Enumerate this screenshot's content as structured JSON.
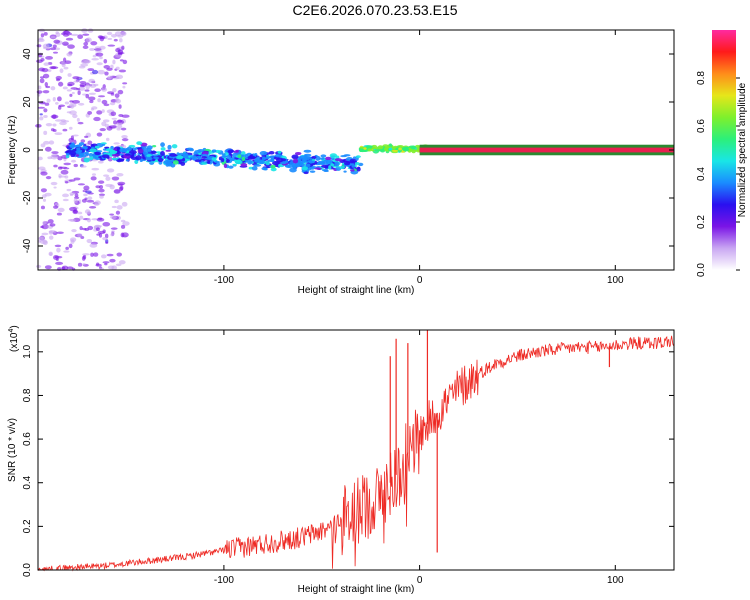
{
  "title": "C2E6.2026.070.23.53.E15",
  "colors": {
    "line": "#ee2a24",
    "axis": "#000000",
    "band_fill": "#e8204f",
    "band_edge": "#2a8a30",
    "colormap": [
      "#ffffff",
      "#c9a6f2",
      "#7a14e6",
      "#2a10f0",
      "#1a8cff",
      "#19e6e6",
      "#2cf07a",
      "#7ff02c",
      "#e6e61a",
      "#ff8c1a",
      "#ff1a1a",
      "#ff2aa0"
    ]
  },
  "chart_data": [
    {
      "type": "heatmap",
      "name": "spectrogram",
      "xlabel": "Height of straight line (km)",
      "ylabel": "Frequency (Hz)",
      "xlim": [
        -195,
        130
      ],
      "ylim": [
        -50,
        50
      ],
      "xticks": [
        -100,
        0,
        100
      ],
      "xtick_labels": [
        "-100",
        "0",
        "100"
      ],
      "yticks": [
        -40,
        -20,
        0,
        20,
        40
      ],
      "ytick_labels": [
        "-40",
        "-20",
        "0",
        "20",
        "40"
      ],
      "colorbar": {
        "label": "Normalized spectral amplitude",
        "range": [
          0,
          1
        ],
        "ticks": [
          0.0,
          0.2,
          0.4,
          0.6,
          0.8
        ],
        "tick_labels": [
          "0.0",
          "0.2",
          "0.4",
          "0.6",
          "0.8"
        ]
      },
      "features": [
        {
          "region": "scattered noise",
          "x_range": [
            -195,
            -150
          ],
          "freq_range": [
            -50,
            50
          ],
          "amplitude": 0.1
        },
        {
          "region": "main cluster",
          "x_range": [
            -180,
            -30
          ],
          "freq_range": [
            -15,
            8
          ],
          "amplitude": 0.35
        },
        {
          "region": "transition",
          "x_range": [
            -30,
            10
          ],
          "freq_range": [
            -3,
            4
          ],
          "amplitude": 0.6
        },
        {
          "region": "steady band",
          "x_range": [
            0,
            130
          ],
          "freq_range": [
            -1,
            1
          ],
          "amplitude": 0.95
        }
      ]
    },
    {
      "type": "line",
      "name": "snr",
      "xlabel": "Height of straight line (km)",
      "ylabel": "SNR (10 * v/v)",
      "y_multiplier": "(x10",
      "y_multiplier_exp": "4",
      "y_multiplier_close": ")",
      "xlim": [
        -195,
        130
      ],
      "ylim": [
        0,
        1.1
      ],
      "xticks": [
        -100,
        0,
        100
      ],
      "xtick_labels": [
        "-100",
        "0",
        "100"
      ],
      "yticks": [
        0.0,
        0.2,
        0.4,
        0.6,
        0.8,
        1.0
      ],
      "ytick_labels": [
        "0.0",
        "0.2",
        "0.4",
        "0.6",
        "0.8",
        "1.0"
      ],
      "series": [
        {
          "name": "SNR",
          "x": [
            -195,
            -180,
            -160,
            -140,
            -120,
            -100,
            -80,
            -60,
            -50,
            -40,
            -30,
            -20,
            -15,
            -10,
            -5,
            0,
            5,
            10,
            15,
            20,
            30,
            40,
            50,
            60,
            70,
            80,
            90,
            100,
            110,
            120,
            130
          ],
          "y": [
            0.0,
            0.01,
            0.02,
            0.04,
            0.06,
            0.09,
            0.12,
            0.15,
            0.18,
            0.22,
            0.28,
            0.34,
            0.4,
            0.46,
            0.55,
            0.62,
            0.68,
            0.73,
            0.78,
            0.83,
            0.9,
            0.95,
            0.98,
            1.0,
            1.01,
            1.02,
            1.02,
            1.03,
            1.04,
            1.04,
            1.05
          ]
        }
      ],
      "spikes": [
        {
          "x": -15,
          "y": 0.98
        },
        {
          "x": -12,
          "y": 1.06
        },
        {
          "x": -6,
          "y": 1.04
        },
        {
          "x": 4,
          "y": 1.1
        },
        {
          "x": 9,
          "y": 0.08
        },
        {
          "x": 97,
          "y": 0.93
        }
      ]
    }
  ]
}
